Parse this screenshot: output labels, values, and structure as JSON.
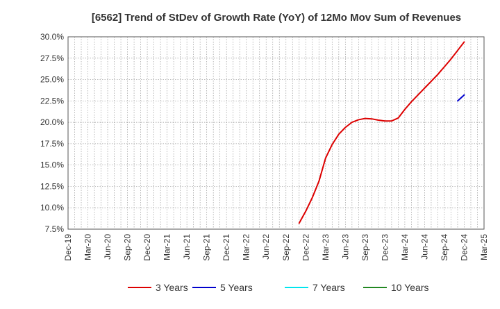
{
  "chart_data": {
    "type": "line",
    "title": "[6562]  Trend of StDev of Growth Rate (YoY) of 12Mo Mov Sum of Revenues",
    "xlabel": "",
    "ylabel": "",
    "x_ticks": [
      "Dec-19",
      "Mar-20",
      "Jun-20",
      "Sep-20",
      "Dec-20",
      "Mar-21",
      "Jun-21",
      "Sep-21",
      "Dec-21",
      "Mar-22",
      "Jun-22",
      "Sep-22",
      "Dec-22",
      "Mar-23",
      "Jun-23",
      "Sep-23",
      "Dec-23",
      "Mar-24",
      "Jun-24",
      "Sep-24",
      "Dec-24",
      "Mar-25"
    ],
    "y_ticks": [
      "7.5%",
      "10.0%",
      "12.5%",
      "15.0%",
      "17.5%",
      "20.0%",
      "22.5%",
      "25.0%",
      "27.5%",
      "30.0%"
    ],
    "ylim": [
      7.5,
      30.0
    ],
    "y_unit": "%",
    "grid": true,
    "legend_position": "bottom",
    "series": [
      {
        "name": "3 Years",
        "color": "#dd0000",
        "points": [
          [
            "Nov-22",
            8.2
          ],
          [
            "Dec-22",
            9.6
          ],
          [
            "Jan-23",
            11.2
          ],
          [
            "Feb-23",
            13.1
          ],
          [
            "Mar-23",
            15.8
          ],
          [
            "Apr-23",
            17.4
          ],
          [
            "May-23",
            18.6
          ],
          [
            "Jun-23",
            19.4
          ],
          [
            "Jul-23",
            20.0
          ],
          [
            "Aug-23",
            20.3
          ],
          [
            "Sep-23",
            20.45
          ],
          [
            "Oct-23",
            20.4
          ],
          [
            "Nov-23",
            20.25
          ],
          [
            "Dec-23",
            20.15
          ],
          [
            "Jan-24",
            20.15
          ],
          [
            "Feb-24",
            20.5
          ],
          [
            "Mar-24",
            21.5
          ],
          [
            "Apr-24",
            22.4
          ],
          [
            "May-24",
            23.2
          ],
          [
            "Jun-24",
            24.0
          ],
          [
            "Jul-24",
            24.8
          ],
          [
            "Aug-24",
            25.6
          ],
          [
            "Sep-24",
            26.5
          ],
          [
            "Oct-24",
            27.4
          ],
          [
            "Nov-24",
            28.4
          ],
          [
            "Dec-24",
            29.4
          ]
        ]
      },
      {
        "name": "5 Years",
        "color": "#0000cc",
        "points": [
          [
            "Nov-24",
            22.5
          ],
          [
            "Dec-24",
            23.2
          ]
        ]
      },
      {
        "name": "7 Years",
        "color": "#00e5ee",
        "points": []
      },
      {
        "name": "10 Years",
        "color": "#228822",
        "points": []
      }
    ]
  }
}
